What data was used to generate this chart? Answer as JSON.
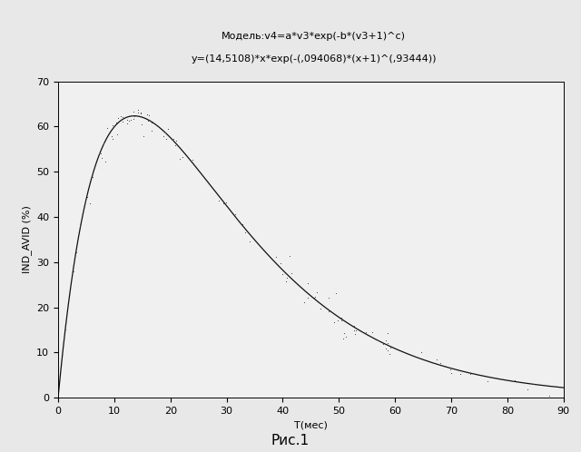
{
  "title_line1": "Модель:v4=a*v3*exp(-b*(v3+1)^c)",
  "title_line2": "y=(14,5108)*x*exp(-(,094068)*(x+1)^(,93444))",
  "xlabel": "T(мес)",
  "ylabel": "IND_AVID (%)",
  "caption": "Рис.1",
  "xlim": [
    0,
    90
  ],
  "ylim": [
    0,
    70
  ],
  "xticks": [
    0,
    10,
    20,
    30,
    40,
    50,
    60,
    70,
    80,
    90
  ],
  "yticks": [
    0,
    10,
    20,
    30,
    40,
    50,
    60,
    70
  ],
  "a": 14.5108,
  "b": 0.094068,
  "c": 0.93444,
  "curve_color": "#111111",
  "scatter_color": "#444444",
  "bg_color": "#e8e8e8",
  "plot_bg_color": "#f0f0f0",
  "title_fontsize": 8,
  "axis_label_fontsize": 8,
  "tick_fontsize": 8,
  "caption_fontsize": 11
}
